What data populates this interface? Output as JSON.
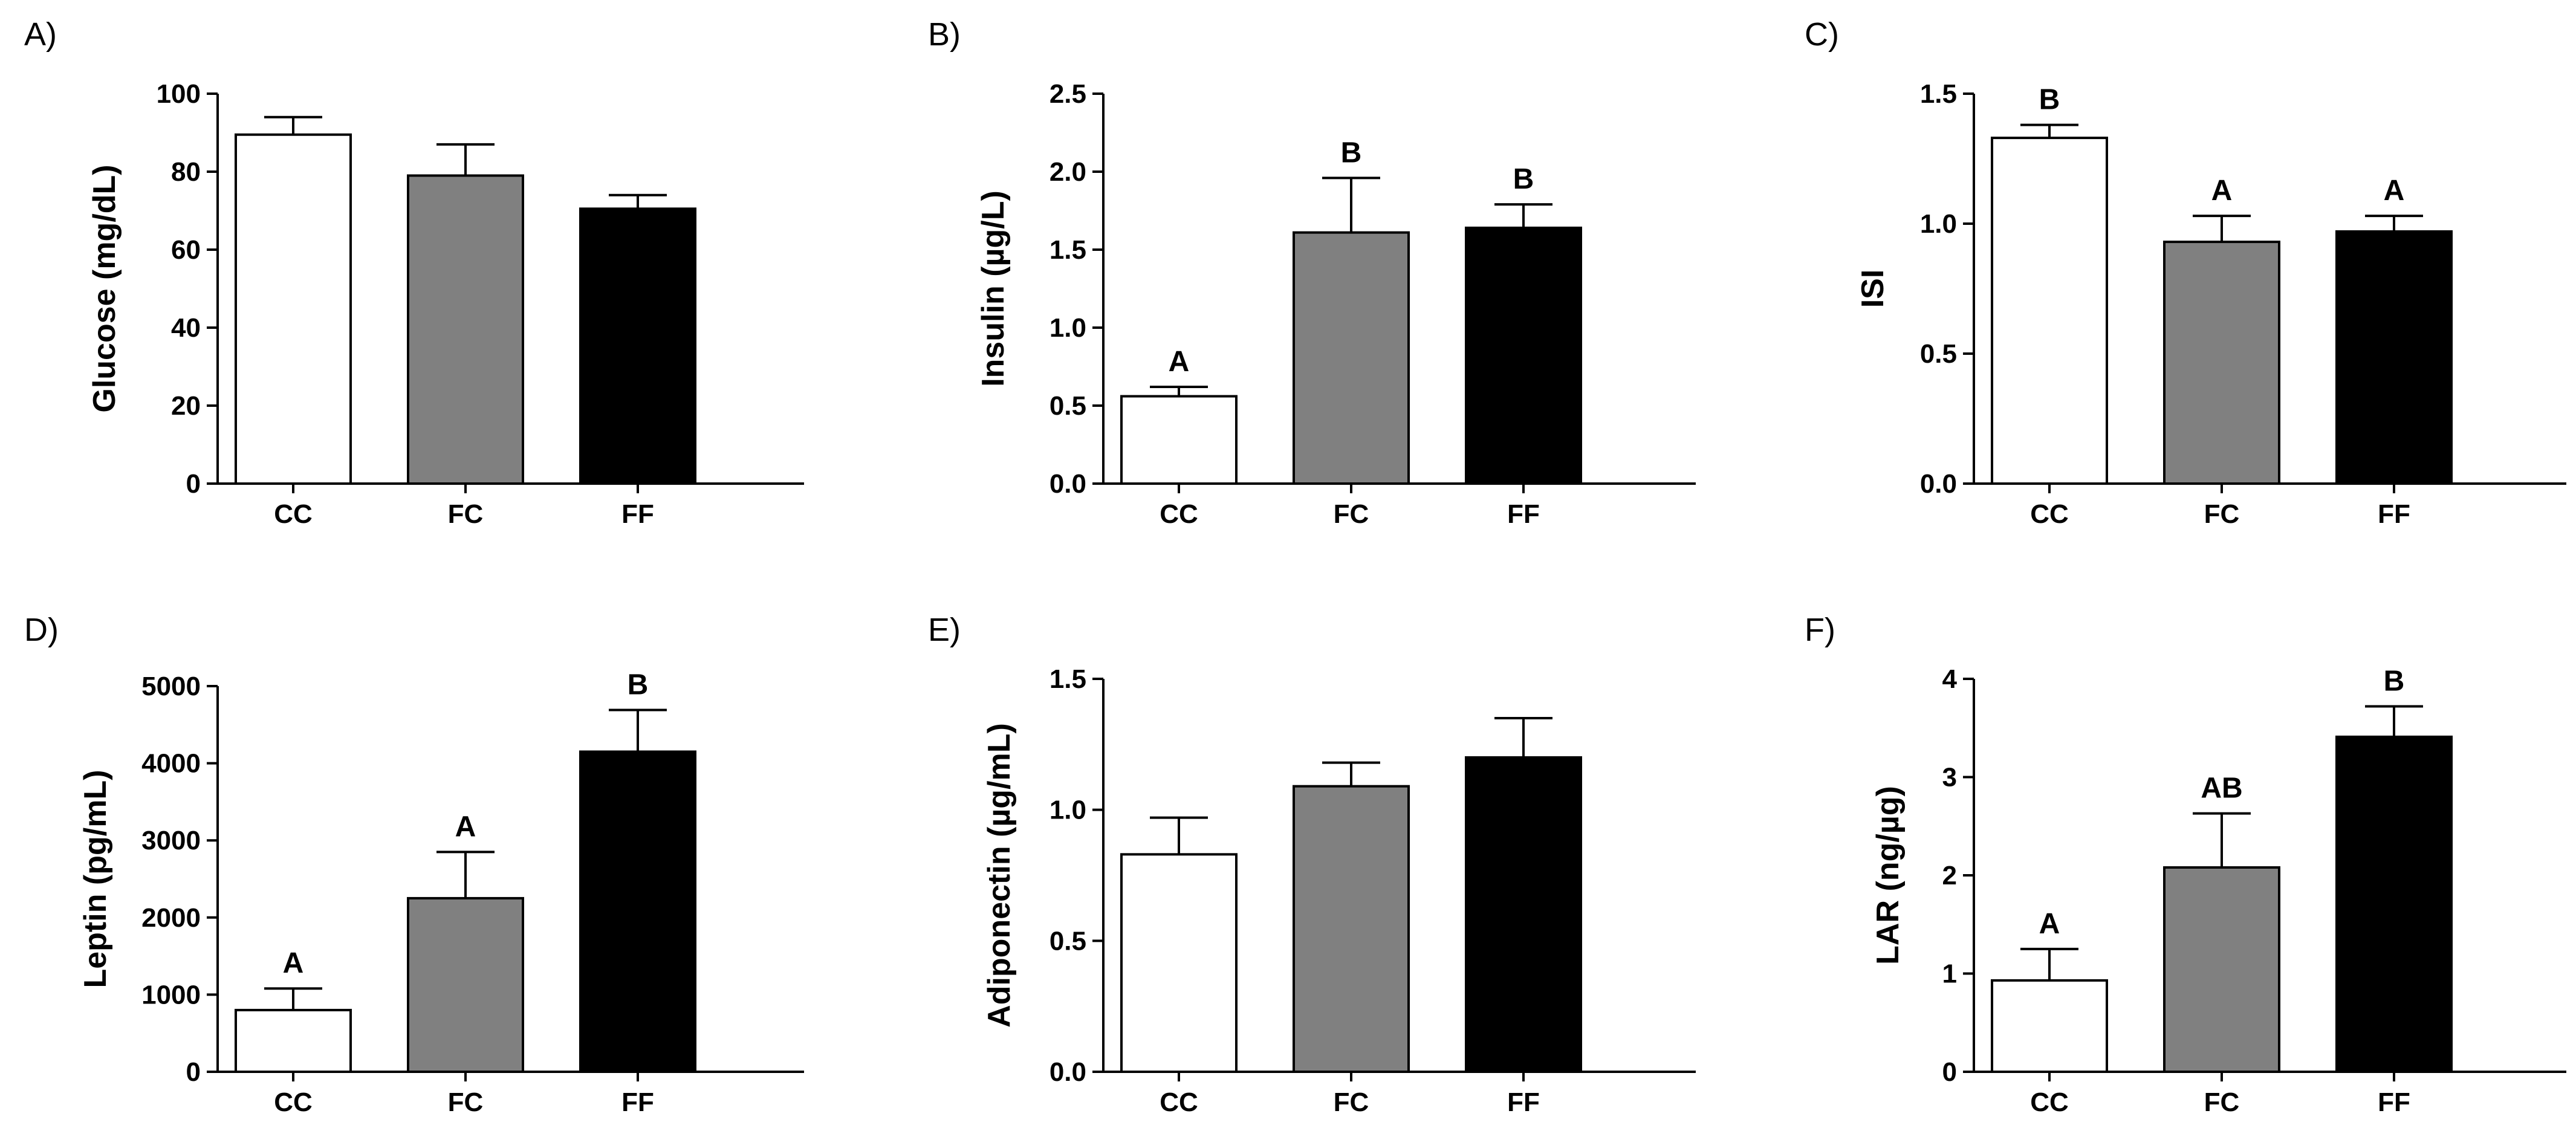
{
  "figure": {
    "bar_fill_colors": [
      "#ffffff",
      "#808080",
      "#000000"
    ],
    "bar_stroke_color": "#000000"
  },
  "chart_data": [
    {
      "panel": "A)",
      "type": "bar",
      "categories": [
        "CC",
        "FC",
        "FF"
      ],
      "values": [
        89.5,
        79,
        70.5
      ],
      "errors": [
        4.5,
        8,
        3.5
      ],
      "significance": [
        "",
        "",
        ""
      ],
      "ylabel": "Glucose (mg/dL)",
      "ylim": [
        0,
        100
      ],
      "yticks": [
        0,
        20,
        40,
        60,
        80,
        100
      ],
      "ytick_labels": [
        "0",
        "20",
        "40",
        "60",
        "80",
        "100"
      ]
    },
    {
      "panel": "B)",
      "type": "bar",
      "categories": [
        "CC",
        "FC",
        "FF"
      ],
      "values": [
        0.56,
        1.61,
        1.64
      ],
      "errors": [
        0.06,
        0.35,
        0.15
      ],
      "significance": [
        "A",
        "B",
        "B"
      ],
      "ylabel": "Insulin (µg/L)",
      "ylim": [
        0,
        2.5
      ],
      "yticks": [
        0,
        0.5,
        1.0,
        1.5,
        2.0,
        2.5
      ],
      "ytick_labels": [
        "0.0",
        "0.5",
        "1.0",
        "1.5",
        "2.0",
        "2.5"
      ]
    },
    {
      "panel": "C)",
      "type": "bar",
      "categories": [
        "CC",
        "FC",
        "FF"
      ],
      "values": [
        1.33,
        0.93,
        0.97
      ],
      "errors": [
        0.05,
        0.1,
        0.06
      ],
      "significance": [
        "B",
        "A",
        "A"
      ],
      "ylabel": "ISI",
      "ylim": [
        0,
        1.5
      ],
      "yticks": [
        0,
        0.5,
        1.0,
        1.5
      ],
      "ytick_labels": [
        "0.0",
        "0.5",
        "1.0",
        "1.5"
      ]
    },
    {
      "panel": "D)",
      "type": "bar",
      "categories": [
        "CC",
        "FC",
        "FF"
      ],
      "values": [
        800,
        2250,
        4150
      ],
      "errors": [
        280,
        600,
        540
      ],
      "significance": [
        "A",
        "A",
        "B"
      ],
      "ylabel": "Leptin (pg/mL)",
      "ylim": [
        0,
        5000
      ],
      "yticks": [
        0,
        1000,
        2000,
        3000,
        4000,
        5000
      ],
      "ytick_labels": [
        "0",
        "1000",
        "2000",
        "3000",
        "4000",
        "5000"
      ]
    },
    {
      "panel": "E)",
      "type": "bar",
      "categories": [
        "CC",
        "FC",
        "FF"
      ],
      "values": [
        0.83,
        1.09,
        1.2
      ],
      "errors": [
        0.14,
        0.09,
        0.15
      ],
      "significance": [
        "",
        "",
        ""
      ],
      "ylabel": "Adiponectin (µg/mL)",
      "ylim": [
        0,
        1.5
      ],
      "yticks": [
        0,
        0.5,
        1.0,
        1.5
      ],
      "ytick_labels": [
        "0.0",
        "0.5",
        "1.0",
        "1.5"
      ]
    },
    {
      "panel": "F)",
      "type": "bar",
      "categories": [
        "CC",
        "FC",
        "FF"
      ],
      "values": [
        0.93,
        2.08,
        3.41
      ],
      "errors": [
        0.32,
        0.55,
        0.31
      ],
      "significance": [
        "A",
        "AB",
        "B"
      ],
      "ylabel": "LAR (ng/µg)",
      "ylim": [
        0,
        4
      ],
      "yticks": [
        0,
        1,
        2,
        3,
        4
      ],
      "ytick_labels": [
        "0",
        "1",
        "2",
        "3",
        "4"
      ]
    }
  ]
}
